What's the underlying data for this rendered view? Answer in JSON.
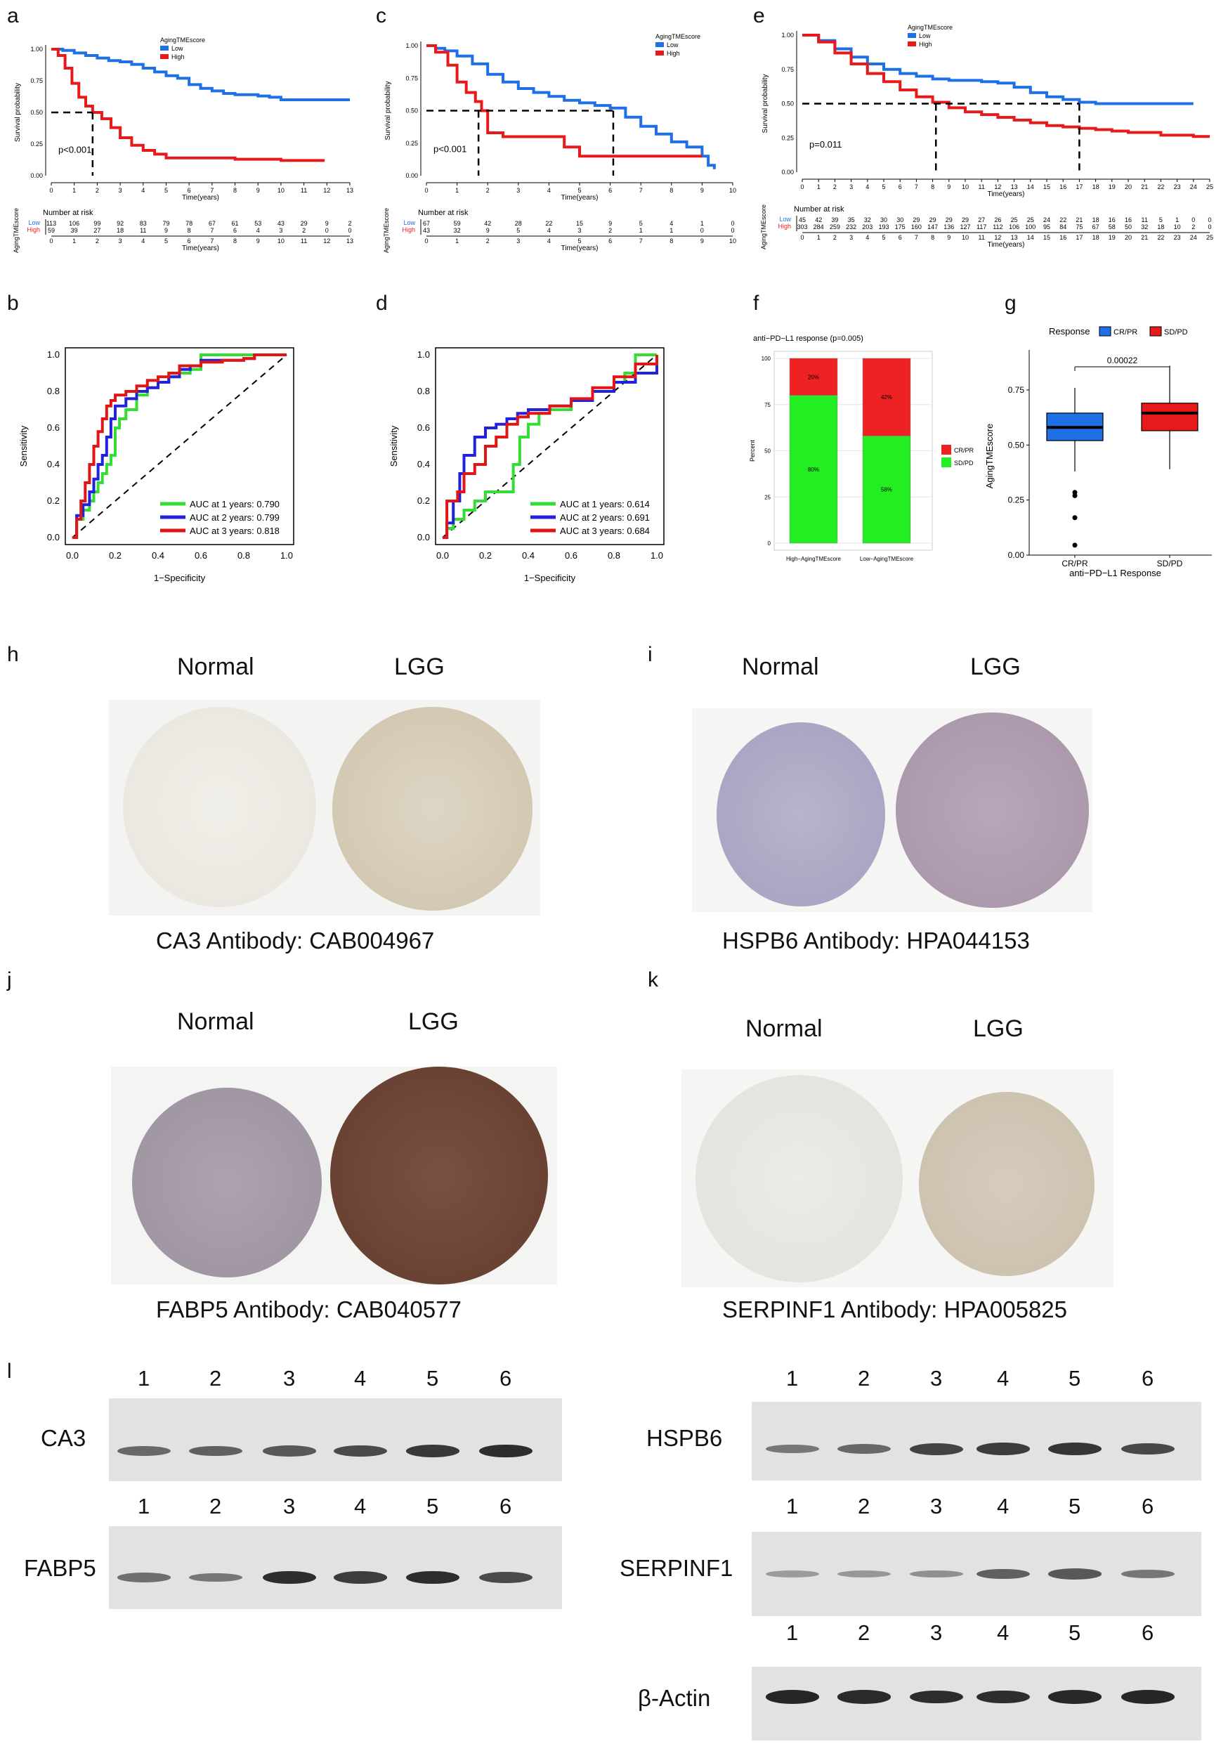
{
  "panels": {
    "a": "a",
    "b": "b",
    "c": "c",
    "d": "d",
    "e": "e",
    "f": "f",
    "g": "g",
    "h": "h",
    "i": "i",
    "j": "j",
    "k": "k",
    "l": "l"
  },
  "km_common": {
    "legend_title": "AgingTMEscore",
    "low_label": "Low",
    "high_label": "High",
    "ylabel": "Survival probability",
    "xlabel": "Time(years)",
    "risk_title": "Number at risk",
    "risk_ylabel": "AgingTMEscore",
    "yticks": [
      "0.00",
      "0.25",
      "0.50",
      "0.75",
      "1.00"
    ],
    "low_color": "#1f6fe5",
    "high_color": "#e8191b"
  },
  "roc_common": {
    "xlabel": "1−Specificity",
    "ylabel": "Sensitivity",
    "ticks": [
      "0.0",
      "0.2",
      "0.4",
      "0.6",
      "0.8",
      "1.0"
    ]
  },
  "chart_data": [
    {
      "id": "a",
      "type": "line",
      "title": "Kaplan-Meier survival",
      "xticks": [
        0,
        1,
        2,
        3,
        4,
        5,
        6,
        7,
        8,
        9,
        10,
        11,
        12,
        13
      ],
      "xlim": [
        0,
        13
      ],
      "ylim": [
        0,
        1
      ],
      "pvalue": "p<0.001",
      "median_high": 1.8,
      "series": [
        {
          "name": "Low",
          "x": [
            0,
            0.5,
            1,
            1.5,
            2,
            2.5,
            3,
            3.5,
            4,
            4.5,
            5,
            5.5,
            6,
            6.5,
            7,
            7.5,
            8,
            8.5,
            9,
            9.5,
            10,
            10.5,
            11,
            11.5,
            12,
            12.5,
            13
          ],
          "y": [
            1,
            0.99,
            0.97,
            0.95,
            0.93,
            0.91,
            0.9,
            0.88,
            0.85,
            0.82,
            0.79,
            0.77,
            0.72,
            0.69,
            0.67,
            0.65,
            0.64,
            0.64,
            0.63,
            0.62,
            0.6,
            0.6,
            0.6,
            0.6,
            0.6,
            0.6,
            0.6
          ]
        },
        {
          "name": "High",
          "x": [
            0,
            0.3,
            0.6,
            0.9,
            1.2,
            1.5,
            1.8,
            2.2,
            2.6,
            3,
            3.5,
            4,
            4.5,
            5,
            5.5,
            6,
            7,
            8,
            9,
            10,
            11,
            11.9
          ],
          "y": [
            1,
            0.95,
            0.85,
            0.73,
            0.62,
            0.55,
            0.5,
            0.45,
            0.38,
            0.3,
            0.24,
            0.2,
            0.17,
            0.14,
            0.14,
            0.14,
            0.14,
            0.13,
            0.13,
            0.12,
            0.12,
            0.12
          ]
        }
      ],
      "risk_low": [
        "113",
        "106",
        "99",
        "92",
        "83",
        "79",
        "78",
        "67",
        "61",
        "53",
        "43",
        "29",
        "9",
        "2"
      ],
      "risk_high": [
        "59",
        "39",
        "27",
        "18",
        "11",
        "9",
        "8",
        "7",
        "6",
        "4",
        "3",
        "2",
        "0",
        "0"
      ]
    },
    {
      "id": "c",
      "type": "line",
      "title": "Kaplan-Meier survival",
      "xticks": [
        0,
        1,
        2,
        3,
        4,
        5,
        6,
        7,
        8,
        9,
        10
      ],
      "xlim": [
        0,
        10
      ],
      "ylim": [
        0,
        1
      ],
      "pvalue": "p<0.001",
      "median_high": 1.7,
      "median_low": 6.1,
      "series": [
        {
          "name": "Low",
          "x": [
            0,
            0.3,
            0.6,
            1,
            1.5,
            2,
            2.5,
            3,
            3.5,
            4,
            4.5,
            5,
            5.5,
            6,
            6.5,
            7,
            7.5,
            8,
            8.5,
            9,
            9.2,
            9.4
          ],
          "y": [
            1,
            0.98,
            0.96,
            0.92,
            0.86,
            0.78,
            0.72,
            0.67,
            0.64,
            0.61,
            0.58,
            0.56,
            0.54,
            0.52,
            0.45,
            0.38,
            0.32,
            0.26,
            0.22,
            0.15,
            0.08,
            0.05
          ]
        },
        {
          "name": "High",
          "x": [
            0,
            0.3,
            0.7,
            1,
            1.3,
            1.6,
            1.8,
            2,
            2.5,
            3,
            4,
            4.5,
            5,
            6,
            7,
            8,
            9
          ],
          "y": [
            1,
            0.95,
            0.85,
            0.72,
            0.64,
            0.57,
            0.5,
            0.33,
            0.3,
            0.3,
            0.3,
            0.22,
            0.15,
            0.15,
            0.15,
            0.15,
            0.15
          ]
        }
      ],
      "risk_low": [
        "67",
        "59",
        "42",
        "28",
        "22",
        "15",
        "9",
        "5",
        "4",
        "1",
        "0"
      ],
      "risk_high": [
        "43",
        "32",
        "9",
        "5",
        "4",
        "3",
        "2",
        "1",
        "1",
        "0",
        "0"
      ]
    },
    {
      "id": "e",
      "type": "line",
      "title": "Kaplan-Meier survival",
      "xticks": [
        0,
        1,
        2,
        3,
        4,
        5,
        6,
        7,
        8,
        9,
        10,
        11,
        12,
        13,
        14,
        15,
        16,
        17,
        18,
        19,
        20,
        21,
        22,
        23,
        24,
        25
      ],
      "xlim": [
        0,
        25
      ],
      "ylim": [
        0,
        1
      ],
      "pvalue": "p=0.011",
      "median_high": 8.2,
      "median_low": 17.0,
      "series": [
        {
          "name": "Low",
          "x": [
            0,
            1,
            2,
            3,
            4,
            5,
            6,
            7,
            8,
            9,
            10,
            11,
            12,
            13,
            14,
            15,
            16,
            17,
            18,
            19,
            20,
            21,
            22,
            23,
            24
          ],
          "y": [
            1,
            0.96,
            0.9,
            0.84,
            0.79,
            0.75,
            0.72,
            0.7,
            0.68,
            0.67,
            0.67,
            0.66,
            0.65,
            0.62,
            0.58,
            0.55,
            0.53,
            0.51,
            0.5,
            0.5,
            0.5,
            0.5,
            0.5,
            0.5,
            0.5
          ]
        },
        {
          "name": "High",
          "x": [
            0,
            1,
            2,
            3,
            4,
            5,
            6,
            7,
            8,
            9,
            10,
            11,
            12,
            13,
            14,
            15,
            16,
            17,
            18,
            19,
            20,
            21,
            22,
            23,
            24,
            25
          ],
          "y": [
            1,
            0.95,
            0.87,
            0.79,
            0.72,
            0.66,
            0.6,
            0.55,
            0.51,
            0.47,
            0.44,
            0.42,
            0.4,
            0.38,
            0.36,
            0.34,
            0.33,
            0.32,
            0.31,
            0.3,
            0.29,
            0.29,
            0.27,
            0.27,
            0.26,
            0.26
          ]
        }
      ],
      "risk_low": [
        "45",
        "42",
        "39",
        "35",
        "32",
        "30",
        "30",
        "29",
        "29",
        "29",
        "29",
        "27",
        "26",
        "25",
        "25",
        "24",
        "22",
        "21",
        "18",
        "16",
        "16",
        "11",
        "5",
        "1",
        "0",
        "0"
      ],
      "risk_high": [
        "303",
        "284",
        "259",
        "232",
        "203",
        "193",
        "175",
        "160",
        "147",
        "136",
        "127",
        "117",
        "112",
        "106",
        "100",
        "95",
        "84",
        "75",
        "67",
        "58",
        "50",
        "32",
        "18",
        "10",
        "2",
        "0"
      ]
    },
    {
      "id": "b",
      "type": "line",
      "title": "ROC",
      "series": [
        {
          "name": "AUC at 1 years: 0.790",
          "color": "#33dd33",
          "x": [
            0,
            0.02,
            0.05,
            0.08,
            0.1,
            0.12,
            0.14,
            0.16,
            0.18,
            0.2,
            0.22,
            0.25,
            0.3,
            0.35,
            0.4,
            0.45,
            0.5,
            0.55,
            0.6,
            0.7,
            0.8,
            0.9,
            1
          ],
          "y": [
            0,
            0.1,
            0.15,
            0.2,
            0.25,
            0.3,
            0.35,
            0.4,
            0.45,
            0.6,
            0.65,
            0.7,
            0.78,
            0.82,
            0.85,
            0.88,
            0.9,
            0.92,
            1,
            1,
            1,
            1,
            1
          ]
        },
        {
          "name": "AUC at 2 years: 0.799",
          "color": "#2222dd",
          "x": [
            0,
            0.02,
            0.05,
            0.08,
            0.1,
            0.12,
            0.14,
            0.16,
            0.18,
            0.2,
            0.25,
            0.3,
            0.35,
            0.4,
            0.45,
            0.5,
            0.55,
            0.6,
            0.7,
            0.8,
            0.85,
            0.9,
            1
          ],
          "y": [
            0,
            0.12,
            0.18,
            0.25,
            0.32,
            0.4,
            0.45,
            0.55,
            0.65,
            0.72,
            0.76,
            0.8,
            0.82,
            0.85,
            0.88,
            0.92,
            0.94,
            0.97,
            0.97,
            0.98,
            1,
            1,
            1
          ]
        },
        {
          "name": "AUC at 3 years: 0.818",
          "color": "#e01515",
          "x": [
            0,
            0.02,
            0.04,
            0.06,
            0.08,
            0.1,
            0.12,
            0.14,
            0.16,
            0.18,
            0.2,
            0.25,
            0.3,
            0.35,
            0.4,
            0.45,
            0.5,
            0.6,
            0.7,
            0.8,
            0.85,
            0.9,
            1
          ],
          "y": [
            0,
            0.1,
            0.2,
            0.3,
            0.4,
            0.5,
            0.58,
            0.65,
            0.72,
            0.75,
            0.78,
            0.8,
            0.83,
            0.86,
            0.88,
            0.9,
            0.94,
            0.96,
            0.97,
            0.98,
            1,
            1,
            1
          ]
        }
      ],
      "xlim": [
        0,
        1
      ],
      "ylim": [
        0,
        1
      ]
    },
    {
      "id": "d",
      "type": "line",
      "title": "ROC",
      "series": [
        {
          "name": "AUC at 1 years: 0.614",
          "color": "#33dd33",
          "x": [
            0,
            0.02,
            0.05,
            0.1,
            0.15,
            0.2,
            0.25,
            0.3,
            0.33,
            0.36,
            0.4,
            0.45,
            0.5,
            0.6,
            0.7,
            0.8,
            0.85,
            0.9,
            1
          ],
          "y": [
            0,
            0.05,
            0.1,
            0.15,
            0.2,
            0.25,
            0.25,
            0.25,
            0.4,
            0.55,
            0.62,
            0.68,
            0.7,
            0.75,
            0.8,
            0.85,
            0.9,
            1,
            1
          ]
        },
        {
          "name": "AUC at 2 years: 0.691",
          "color": "#2222dd",
          "x": [
            0,
            0.02,
            0.05,
            0.08,
            0.1,
            0.15,
            0.2,
            0.25,
            0.3,
            0.35,
            0.4,
            0.5,
            0.6,
            0.7,
            0.8,
            0.9,
            1
          ],
          "y": [
            0,
            0.08,
            0.2,
            0.35,
            0.45,
            0.55,
            0.6,
            0.62,
            0.65,
            0.68,
            0.7,
            0.72,
            0.75,
            0.8,
            0.85,
            0.9,
            1
          ]
        },
        {
          "name": "AUC at 3 years: 0.684",
          "color": "#e01515",
          "x": [
            0,
            0.02,
            0.04,
            0.07,
            0.1,
            0.15,
            0.2,
            0.25,
            0.3,
            0.35,
            0.4,
            0.5,
            0.6,
            0.7,
            0.8,
            0.9,
            1
          ],
          "y": [
            0,
            0.2,
            0.2,
            0.25,
            0.35,
            0.4,
            0.5,
            0.55,
            0.62,
            0.66,
            0.68,
            0.72,
            0.76,
            0.82,
            0.88,
            0.95,
            1
          ]
        }
      ],
      "xlim": [
        0,
        1
      ],
      "ylim": [
        0,
        1
      ]
    },
    {
      "id": "f",
      "type": "bar",
      "title": "anti−PD−L1 response (p=0.005)",
      "categories": [
        "High−AgingTMEscore",
        "Low−AgingTMEscore"
      ],
      "series": [
        {
          "name": "SD/PD",
          "color": "#22ee22",
          "values": [
            80,
            58
          ],
          "labels": [
            "80%",
            "58%"
          ]
        },
        {
          "name": "CR/PR",
          "color": "#ee2222",
          "values": [
            20,
            42
          ],
          "labels": [
            "20%",
            "42%"
          ]
        }
      ],
      "ylabel": "Percent",
      "yticks": [
        "0",
        "25",
        "50",
        "75",
        "100"
      ],
      "ylim": [
        0,
        100
      ]
    },
    {
      "id": "g",
      "type": "box",
      "title": "",
      "legend_title": "Response",
      "categories": [
        "CR/PR",
        "SD/PD"
      ],
      "colors": [
        "#1f6fe5",
        "#e8191b"
      ],
      "stats": [
        {
          "q1": 0.52,
          "median": 0.58,
          "q3": 0.645,
          "whisker_low": 0.38,
          "whisker_high": 0.76,
          "outliers": [
            0.285,
            0.27,
            0.17,
            0.045
          ]
        },
        {
          "q1": 0.565,
          "median": 0.645,
          "q3": 0.69,
          "whisker_low": 0.39,
          "whisker_high": 0.86,
          "outliers": []
        }
      ],
      "pvalue": "0.00022",
      "xlabel": "anti−PD−L1 Response",
      "ylabel": "AgingTMEscore",
      "yticks": [
        "0.00",
        "0.25",
        "0.50",
        "0.75"
      ],
      "ylim": [
        0,
        0.9
      ]
    }
  ],
  "ihc": {
    "normal_label": "Normal",
    "lgg_label": "LGG",
    "h_caption": "CA3 Antibody: CAB004967",
    "i_caption": "HSPB6 Antibody: HPA044153",
    "j_caption": "FABP5 Antibody: CAB040577",
    "k_caption": "SERPINF1 Antibody: HPA005825"
  },
  "western": {
    "lanes": [
      "1",
      "2",
      "3",
      "4",
      "5",
      "6"
    ],
    "ca3": "CA3",
    "fabp5": "FABP5",
    "hspb6": "HSPB6",
    "serpinf1": "SERPINF1",
    "actin": "β-Actin"
  }
}
